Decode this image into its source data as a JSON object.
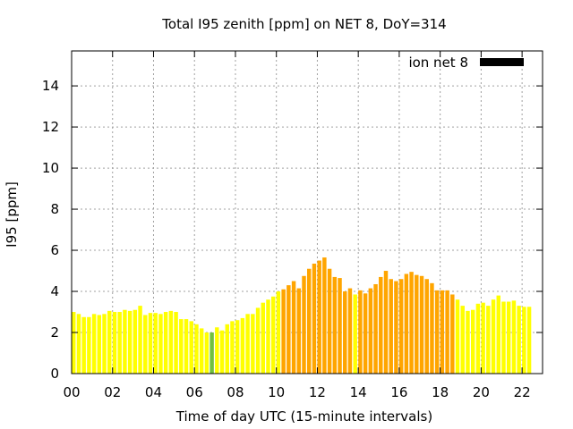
{
  "chart_data": {
    "type": "bar",
    "title": "Total I95 zenith [ppm] on NET 8, DoY=314",
    "xlabel": "Time of day UTC (15-minute intervals)",
    "ylabel": "I95 [ppm]",
    "xlim": [
      0,
      23
    ],
    "ylim": [
      0,
      15.7
    ],
    "xticks": [
      "00",
      "02",
      "04",
      "06",
      "08",
      "10",
      "12",
      "14",
      "16",
      "18",
      "20",
      "22"
    ],
    "yticks": [
      "0",
      "2",
      "4",
      "6",
      "8",
      "10",
      "12",
      "14"
    ],
    "grid": true,
    "legend": {
      "placement": "top-right",
      "label": "ion net 8",
      "color": "#000000"
    },
    "bar_interval_hours": 0.25,
    "colors": {
      "low": "#ffff00",
      "mid": "#ffa500",
      "flag": "#70c040"
    },
    "series": [
      {
        "name": "ion net 8",
        "values": [
          3.0,
          2.9,
          2.75,
          2.75,
          2.9,
          2.85,
          2.9,
          3.05,
          3.0,
          3.0,
          3.1,
          3.05,
          3.1,
          3.3,
          2.85,
          2.95,
          2.95,
          2.9,
          3.0,
          3.05,
          3.0,
          2.65,
          2.65,
          2.55,
          2.4,
          2.2,
          2.0,
          2.0,
          2.25,
          2.1,
          2.4,
          2.55,
          2.6,
          2.7,
          2.9,
          2.9,
          3.2,
          3.45,
          3.6,
          3.75,
          4.0,
          4.1,
          4.3,
          4.5,
          4.15,
          4.75,
          5.1,
          5.35,
          5.5,
          5.65,
          5.1,
          4.7,
          4.65,
          4.0,
          4.15,
          3.85,
          4.05,
          3.9,
          4.15,
          4.35,
          4.7,
          5.0,
          4.6,
          4.5,
          4.6,
          4.85,
          4.95,
          4.8,
          4.75,
          4.6,
          4.4,
          4.05,
          4.05,
          4.05,
          3.85,
          3.6,
          3.3,
          3.05,
          3.1,
          3.4,
          3.45,
          3.3,
          3.6,
          3.8,
          3.5,
          3.5,
          3.55,
          3.3,
          3.25,
          3.25
        ],
        "colors": [
          "low",
          "low",
          "low",
          "low",
          "low",
          "low",
          "low",
          "low",
          "low",
          "low",
          "low",
          "low",
          "low",
          "low",
          "low",
          "low",
          "low",
          "low",
          "low",
          "low",
          "low",
          "low",
          "low",
          "low",
          "low",
          "low",
          "low",
          "flag",
          "low",
          "low",
          "low",
          "low",
          "low",
          "low",
          "low",
          "low",
          "low",
          "low",
          "low",
          "low",
          "low",
          "mid",
          "mid",
          "mid",
          "mid",
          "mid",
          "mid",
          "mid",
          "mid",
          "mid",
          "mid",
          "mid",
          "mid",
          "mid",
          "mid",
          "low",
          "mid",
          "mid",
          "mid",
          "mid",
          "mid",
          "mid",
          "mid",
          "mid",
          "mid",
          "mid",
          "mid",
          "mid",
          "mid",
          "mid",
          "mid",
          "mid",
          "mid",
          "mid",
          "mid",
          "low",
          "low",
          "low",
          "low",
          "low",
          "low",
          "low",
          "low",
          "low",
          "low",
          "low",
          "low",
          "low",
          "low",
          "low"
        ]
      }
    ]
  }
}
